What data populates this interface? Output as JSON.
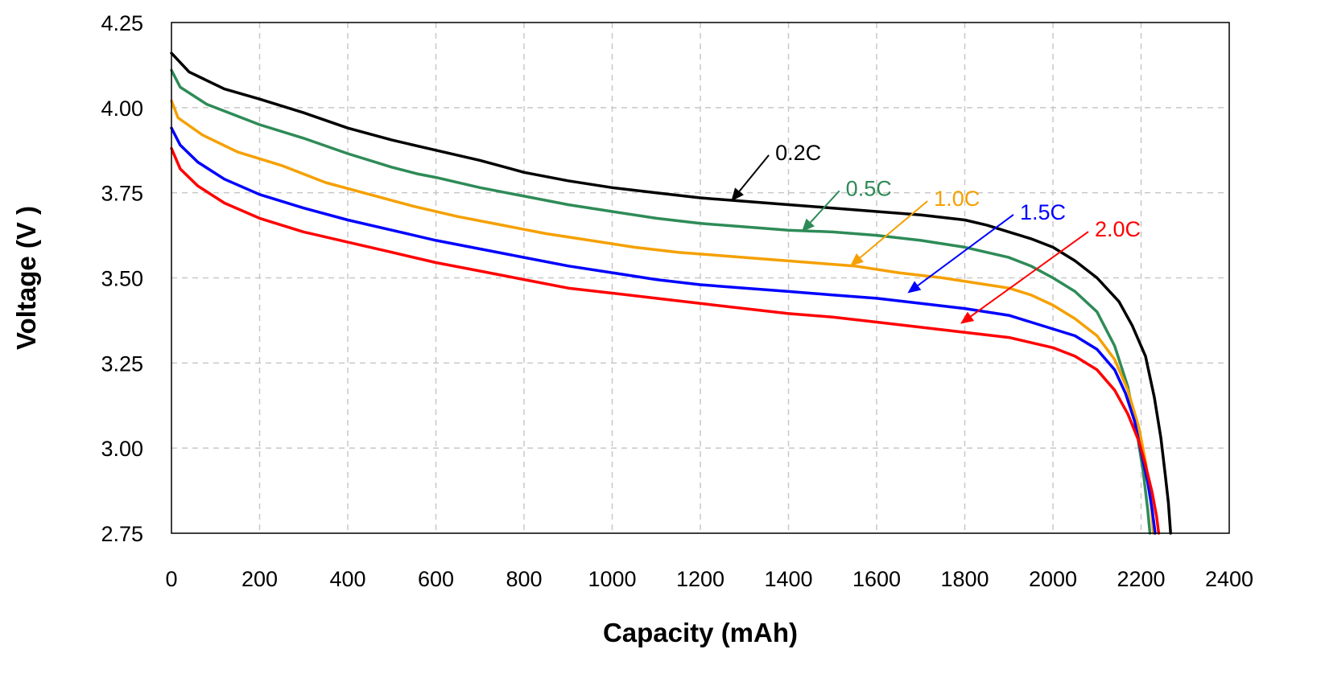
{
  "chart_data": {
    "type": "line",
    "xlabel": "Capacity (mAh)",
    "ylabel": "Voltage (V )",
    "xlim": [
      0,
      2400
    ],
    "ylim": [
      2.75,
      4.25
    ],
    "x_ticks": [
      "0",
      "200",
      "400",
      "600",
      "800",
      "1000",
      "1200",
      "1400",
      "1600",
      "1800",
      "2000",
      "2200",
      "2400"
    ],
    "y_ticks": [
      "2.75",
      "3.00",
      "3.25",
      "3.50",
      "3.75",
      "4.00",
      "4.25"
    ],
    "grid": true,
    "series": [
      {
        "name": "0.2C",
        "color": "#000000",
        "points": [
          [
            0,
            4.16
          ],
          [
            40,
            4.105
          ],
          [
            120,
            4.055
          ],
          [
            200,
            4.025
          ],
          [
            300,
            3.985
          ],
          [
            400,
            3.94
          ],
          [
            500,
            3.905
          ],
          [
            600,
            3.875
          ],
          [
            700,
            3.845
          ],
          [
            800,
            3.81
          ],
          [
            900,
            3.785
          ],
          [
            1000,
            3.765
          ],
          [
            1100,
            3.75
          ],
          [
            1200,
            3.735
          ],
          [
            1300,
            3.725
          ],
          [
            1400,
            3.715
          ],
          [
            1500,
            3.705
          ],
          [
            1600,
            3.695
          ],
          [
            1700,
            3.685
          ],
          [
            1800,
            3.67
          ],
          [
            1850,
            3.655
          ],
          [
            1900,
            3.635
          ],
          [
            1950,
            3.615
          ],
          [
            2000,
            3.59
          ],
          [
            2050,
            3.55
          ],
          [
            2100,
            3.5
          ],
          [
            2150,
            3.43
          ],
          [
            2180,
            3.36
          ],
          [
            2210,
            3.27
          ],
          [
            2230,
            3.15
          ],
          [
            2245,
            3.03
          ],
          [
            2255,
            2.92
          ],
          [
            2262,
            2.84
          ],
          [
            2267,
            2.75
          ]
        ],
        "label_pos": [
          1370,
          3.87
        ],
        "arrow_to": [
          1270,
          3.725
        ]
      },
      {
        "name": "0.5C",
        "color": "#2e8b57",
        "points": [
          [
            0,
            4.11
          ],
          [
            20,
            4.06
          ],
          [
            80,
            4.01
          ],
          [
            200,
            3.95
          ],
          [
            300,
            3.91
          ],
          [
            400,
            3.865
          ],
          [
            500,
            3.825
          ],
          [
            560,
            3.805
          ],
          [
            600,
            3.795
          ],
          [
            700,
            3.765
          ],
          [
            800,
            3.74
          ],
          [
            900,
            3.715
          ],
          [
            1000,
            3.695
          ],
          [
            1100,
            3.675
          ],
          [
            1200,
            3.66
          ],
          [
            1300,
            3.65
          ],
          [
            1400,
            3.64
          ],
          [
            1500,
            3.635
          ],
          [
            1600,
            3.625
          ],
          [
            1700,
            3.61
          ],
          [
            1800,
            3.59
          ],
          [
            1900,
            3.56
          ],
          [
            1950,
            3.535
          ],
          [
            2000,
            3.5
          ],
          [
            2050,
            3.46
          ],
          [
            2100,
            3.4
          ],
          [
            2140,
            3.3
          ],
          [
            2170,
            3.18
          ],
          [
            2190,
            3.05
          ],
          [
            2205,
            2.93
          ],
          [
            2215,
            2.82
          ],
          [
            2220,
            2.75
          ]
        ],
        "label_pos": [
          1530,
          3.765
        ],
        "arrow_to": [
          1430,
          3.635
        ]
      },
      {
        "name": "1.0C",
        "color": "#f5a000",
        "points": [
          [
            0,
            4.02
          ],
          [
            15,
            3.97
          ],
          [
            70,
            3.92
          ],
          [
            150,
            3.87
          ],
          [
            250,
            3.83
          ],
          [
            350,
            3.78
          ],
          [
            450,
            3.745
          ],
          [
            550,
            3.71
          ],
          [
            650,
            3.68
          ],
          [
            750,
            3.655
          ],
          [
            850,
            3.63
          ],
          [
            950,
            3.61
          ],
          [
            1050,
            3.59
          ],
          [
            1150,
            3.575
          ],
          [
            1250,
            3.565
          ],
          [
            1350,
            3.555
          ],
          [
            1450,
            3.545
          ],
          [
            1550,
            3.535
          ],
          [
            1650,
            3.515
          ],
          [
            1750,
            3.5
          ],
          [
            1850,
            3.48
          ],
          [
            1900,
            3.47
          ],
          [
            1950,
            3.45
          ],
          [
            2000,
            3.42
          ],
          [
            2050,
            3.38
          ],
          [
            2100,
            3.33
          ],
          [
            2140,
            3.26
          ],
          [
            2170,
            3.17
          ],
          [
            2195,
            3.06
          ],
          [
            2210,
            2.96
          ],
          [
            2222,
            2.85
          ],
          [
            2228,
            2.75
          ]
        ],
        "label_pos": [
          1730,
          3.735
        ],
        "arrow_to": [
          1540,
          3.535
        ]
      },
      {
        "name": "1.5C",
        "color": "#0000ff",
        "points": [
          [
            0,
            3.94
          ],
          [
            20,
            3.89
          ],
          [
            60,
            3.84
          ],
          [
            120,
            3.79
          ],
          [
            200,
            3.745
          ],
          [
            300,
            3.705
          ],
          [
            400,
            3.67
          ],
          [
            500,
            3.64
          ],
          [
            600,
            3.61
          ],
          [
            700,
            3.585
          ],
          [
            800,
            3.56
          ],
          [
            900,
            3.535
          ],
          [
            1000,
            3.515
          ],
          [
            1100,
            3.495
          ],
          [
            1200,
            3.48
          ],
          [
            1300,
            3.47
          ],
          [
            1400,
            3.46
          ],
          [
            1500,
            3.45
          ],
          [
            1600,
            3.44
          ],
          [
            1700,
            3.425
          ],
          [
            1800,
            3.41
          ],
          [
            1900,
            3.39
          ],
          [
            1950,
            3.37
          ],
          [
            2000,
            3.35
          ],
          [
            2050,
            3.33
          ],
          [
            2100,
            3.29
          ],
          [
            2140,
            3.23
          ],
          [
            2165,
            3.16
          ],
          [
            2185,
            3.08
          ],
          [
            2200,
            2.99
          ],
          [
            2215,
            2.9
          ],
          [
            2225,
            2.82
          ],
          [
            2232,
            2.75
          ]
        ],
        "label_pos": [
          1925,
          3.695
        ],
        "arrow_to": [
          1670,
          3.455
        ]
      },
      {
        "name": "2.0C",
        "color": "#ff0000",
        "points": [
          [
            0,
            3.88
          ],
          [
            20,
            3.82
          ],
          [
            60,
            3.77
          ],
          [
            120,
            3.72
          ],
          [
            200,
            3.675
          ],
          [
            300,
            3.635
          ],
          [
            400,
            3.605
          ],
          [
            500,
            3.575
          ],
          [
            600,
            3.545
          ],
          [
            700,
            3.52
          ],
          [
            800,
            3.495
          ],
          [
            900,
            3.47
          ],
          [
            1000,
            3.455
          ],
          [
            1100,
            3.44
          ],
          [
            1200,
            3.425
          ],
          [
            1300,
            3.41
          ],
          [
            1400,
            3.395
          ],
          [
            1500,
            3.385
          ],
          [
            1600,
            3.37
          ],
          [
            1700,
            3.355
          ],
          [
            1800,
            3.34
          ],
          [
            1900,
            3.325
          ],
          [
            1950,
            3.31
          ],
          [
            2000,
            3.295
          ],
          [
            2050,
            3.27
          ],
          [
            2100,
            3.23
          ],
          [
            2140,
            3.17
          ],
          [
            2170,
            3.1
          ],
          [
            2195,
            3.02
          ],
          [
            2210,
            2.95
          ],
          [
            2225,
            2.87
          ],
          [
            2235,
            2.8
          ],
          [
            2240,
            2.75
          ]
        ],
        "label_pos": [
          2095,
          3.645
        ],
        "arrow_to": [
          1790,
          3.365
        ]
      }
    ]
  }
}
